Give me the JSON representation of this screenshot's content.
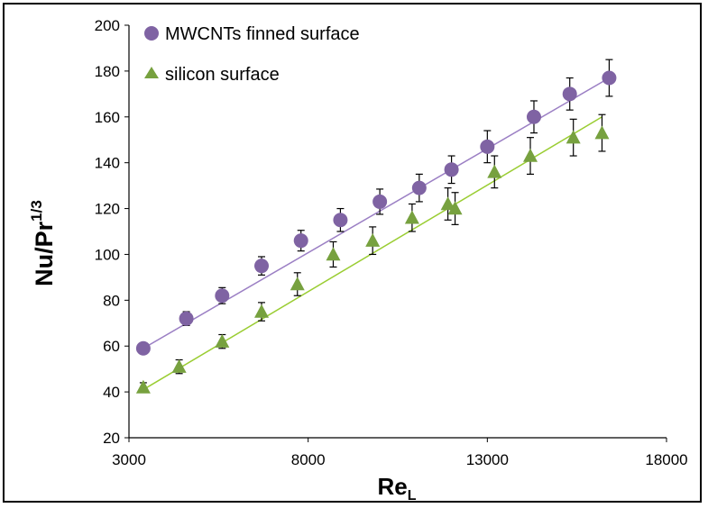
{
  "chart_data": {
    "type": "scatter",
    "title": "",
    "xlabel": {
      "main": "Re",
      "sub": "L"
    },
    "ylabel": {
      "main": "Nu/Pr",
      "sup": "1/3"
    },
    "xlim": [
      3000,
      18000
    ],
    "ylim": [
      20,
      200
    ],
    "x_ticks": [
      "3000",
      "8000",
      "13000",
      "18000"
    ],
    "y_ticks": [
      "20",
      "40",
      "60",
      "80",
      "100",
      "120",
      "140",
      "160",
      "180",
      "200"
    ],
    "grid": false,
    "legend_position": "top-left",
    "series": [
      {
        "name": "MWCNTs finned surface",
        "marker": "circle",
        "color": "#7f63a3",
        "line_color": "#9b7fc4",
        "trendline": {
          "x": [
            3400,
            16400
          ],
          "y": [
            59,
            177
          ]
        },
        "points": [
          {
            "x": 3400,
            "y": 59,
            "err": 2
          },
          {
            "x": 4600,
            "y": 72,
            "err": 3
          },
          {
            "x": 5600,
            "y": 82,
            "err": 3.5
          },
          {
            "x": 6700,
            "y": 95,
            "err": 4
          },
          {
            "x": 7800,
            "y": 106,
            "err": 4.5
          },
          {
            "x": 8900,
            "y": 115,
            "err": 5
          },
          {
            "x": 10000,
            "y": 123,
            "err": 5.5
          },
          {
            "x": 11100,
            "y": 129,
            "err": 6
          },
          {
            "x": 12000,
            "y": 137,
            "err": 6
          },
          {
            "x": 13000,
            "y": 147,
            "err": 7
          },
          {
            "x": 14300,
            "y": 160,
            "err": 7
          },
          {
            "x": 15300,
            "y": 170,
            "err": 7
          },
          {
            "x": 16400,
            "y": 177,
            "err": 8
          }
        ]
      },
      {
        "name": "silicon surface",
        "marker": "triangle",
        "color": "#77a13f",
        "line_color": "#9acd32",
        "trendline": {
          "x": [
            3400,
            16200
          ],
          "y": [
            41,
            160
          ]
        },
        "points": [
          {
            "x": 3400,
            "y": 42,
            "err": 2
          },
          {
            "x": 4400,
            "y": 51,
            "err": 3
          },
          {
            "x": 5600,
            "y": 62,
            "err": 3
          },
          {
            "x": 6700,
            "y": 75,
            "err": 4
          },
          {
            "x": 7700,
            "y": 87,
            "err": 5
          },
          {
            "x": 8700,
            "y": 100,
            "err": 5.5
          },
          {
            "x": 9800,
            "y": 106,
            "err": 6
          },
          {
            "x": 10900,
            "y": 116,
            "err": 6
          },
          {
            "x": 11900,
            "y": 122,
            "err": 7
          },
          {
            "x": 12100,
            "y": 120,
            "err": 7
          },
          {
            "x": 13200,
            "y": 136,
            "err": 7
          },
          {
            "x": 14200,
            "y": 143,
            "err": 8
          },
          {
            "x": 15400,
            "y": 151,
            "err": 8
          },
          {
            "x": 16200,
            "y": 153,
            "err": 8
          }
        ]
      }
    ]
  }
}
